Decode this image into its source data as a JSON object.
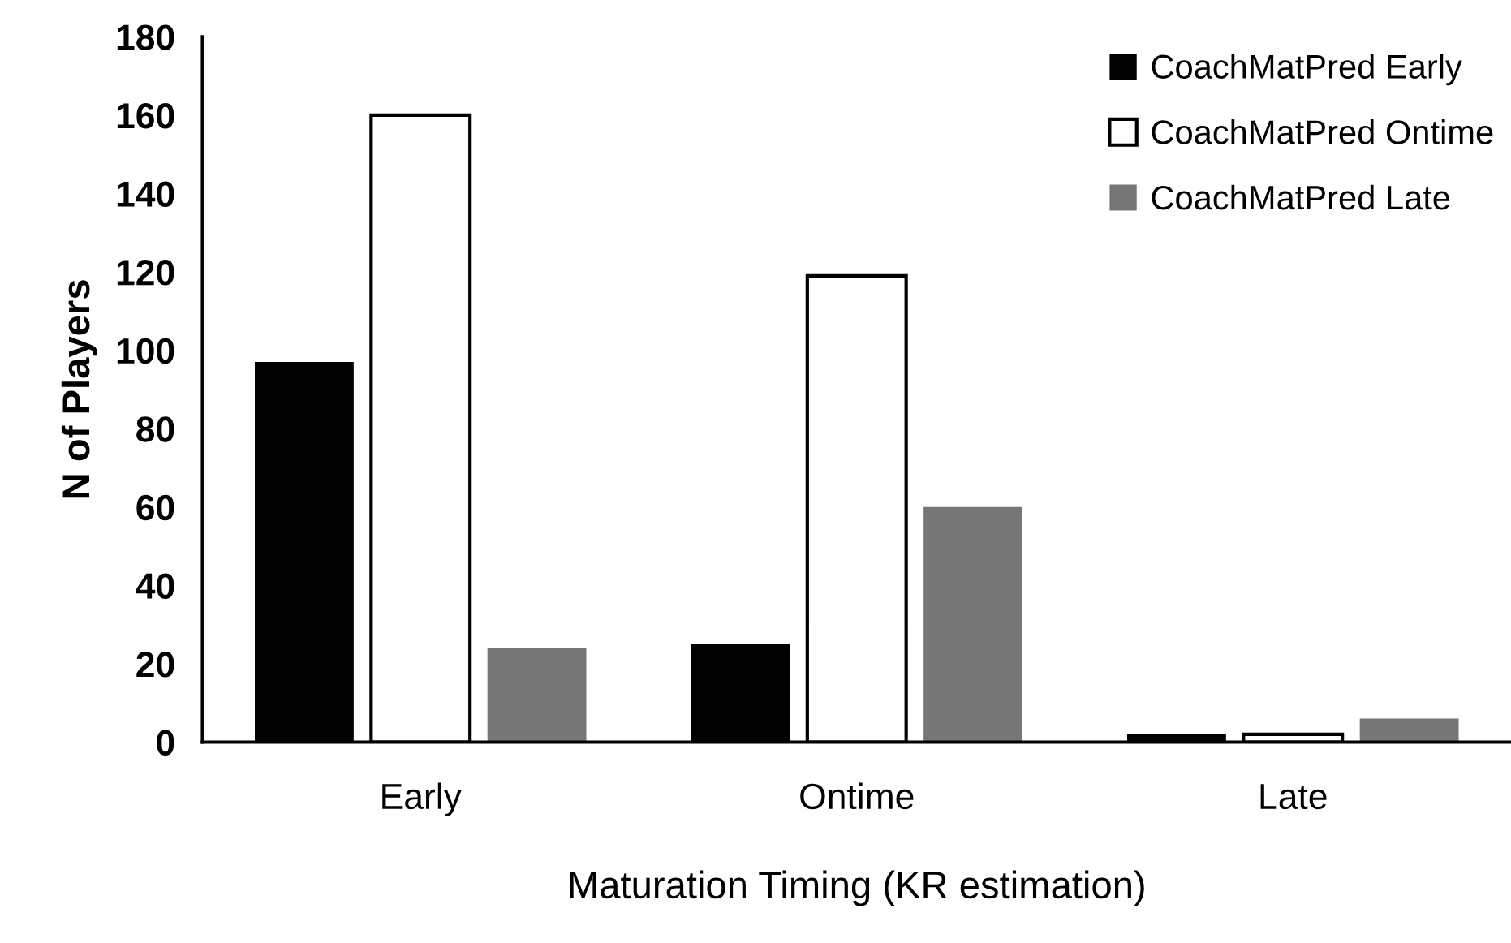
{
  "chart_data": {
    "type": "bar",
    "categories": [
      "Early",
      "Ontime",
      "Late"
    ],
    "series": [
      {
        "name": "CoachMatPred Early",
        "color": "#000000",
        "values": [
          97,
          25,
          2
        ]
      },
      {
        "name": "CoachMatPred Ontime",
        "color": "#ffffff",
        "values": [
          160,
          119,
          2
        ]
      },
      {
        "name": "CoachMatPred Late",
        "color": "#767676",
        "values": [
          24,
          60,
          6
        ]
      }
    ],
    "xlabel": "Maturation Timing (KR estimation)",
    "ylabel": "N of Players",
    "ylim": [
      0,
      180
    ],
    "yticks": [
      0,
      20,
      40,
      60,
      80,
      100,
      120,
      140,
      160,
      180
    ],
    "grid": false,
    "legend": "top right"
  }
}
